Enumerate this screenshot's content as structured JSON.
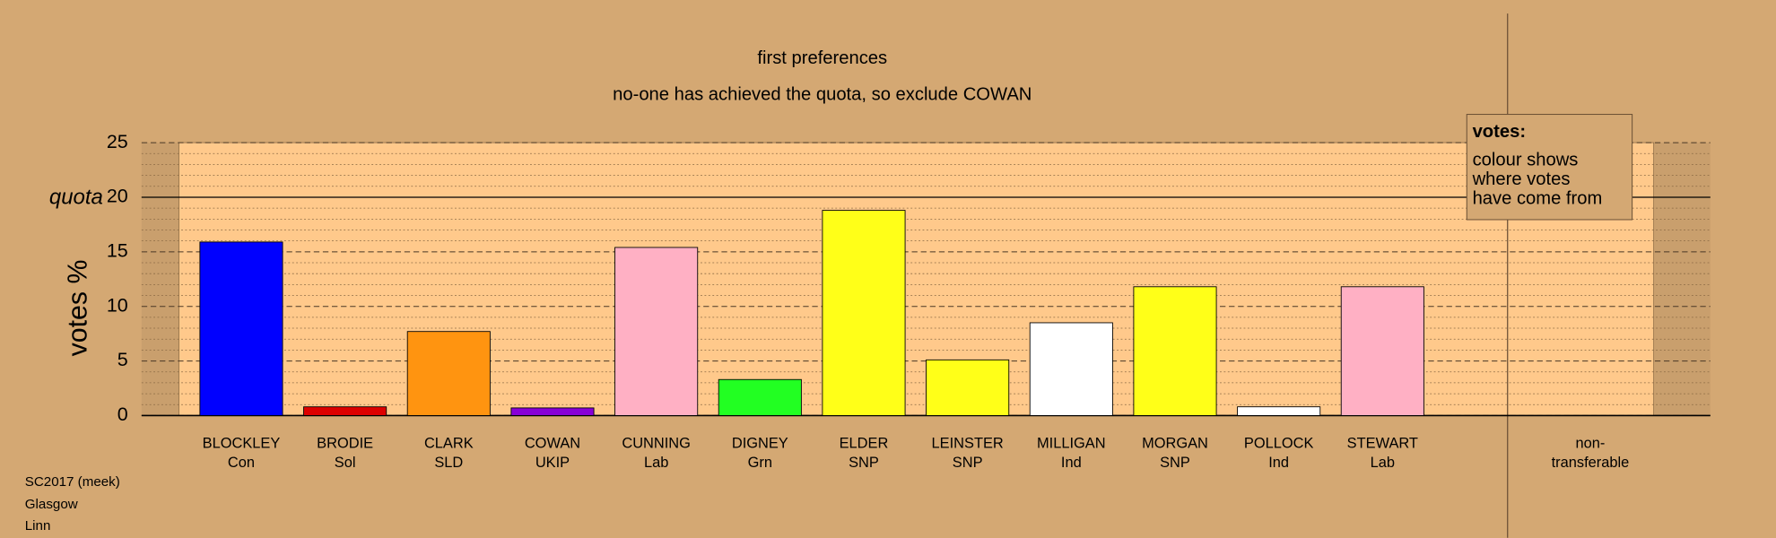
{
  "chart_data": {
    "type": "bar",
    "title": "first preferences",
    "subtitle": "no-one has achieved the quota, so exclude COWAN",
    "y_label": "votes %",
    "categories": [
      "BLOCKLEY",
      "BRODIE",
      "CLARK",
      "COWAN",
      "CUNNING",
      "DIGNEY",
      "ELDER",
      "LEINSTER",
      "MILLIGAN",
      "MORGAN",
      "POLLOCK",
      "STEWART",
      "non-"
    ],
    "parties": [
      "Con",
      "Sol",
      "SLD",
      "UKIP",
      "Lab",
      "Grn",
      "SNP",
      "SNP",
      "Ind",
      "SNP",
      "Ind",
      "Lab",
      "transferable"
    ],
    "values": [
      15.9,
      0.8,
      7.7,
      0.7,
      15.4,
      3.3,
      18.8,
      5.1,
      8.5,
      11.8,
      0.8,
      11.8,
      null
    ],
    "colors": [
      "#0000ff",
      "#dd0000",
      "#ff9410",
      "#8800d8",
      "#ffb0c4",
      "#22ff22",
      "#ffff18",
      "#ffff18",
      "#ffffff",
      "#ffff18",
      "#ffffff",
      "#ffb0c4",
      null
    ],
    "ylim": [
      0,
      25
    ],
    "yticks": [
      0,
      5,
      10,
      15,
      20,
      25
    ],
    "minor_yticks": [
      1,
      2,
      3,
      4,
      6,
      7,
      8,
      9,
      11,
      12,
      13,
      14,
      16,
      17,
      18,
      19,
      21,
      22,
      23,
      24
    ],
    "quota": {
      "value": 20,
      "label": "quota"
    },
    "grid": true,
    "legend": {
      "title": "votes:",
      "lines": [
        "colour shows",
        "where votes",
        "have come from"
      ]
    },
    "footer": [
      "SC2017 (meek)",
      "Glasgow",
      "Linn"
    ]
  }
}
